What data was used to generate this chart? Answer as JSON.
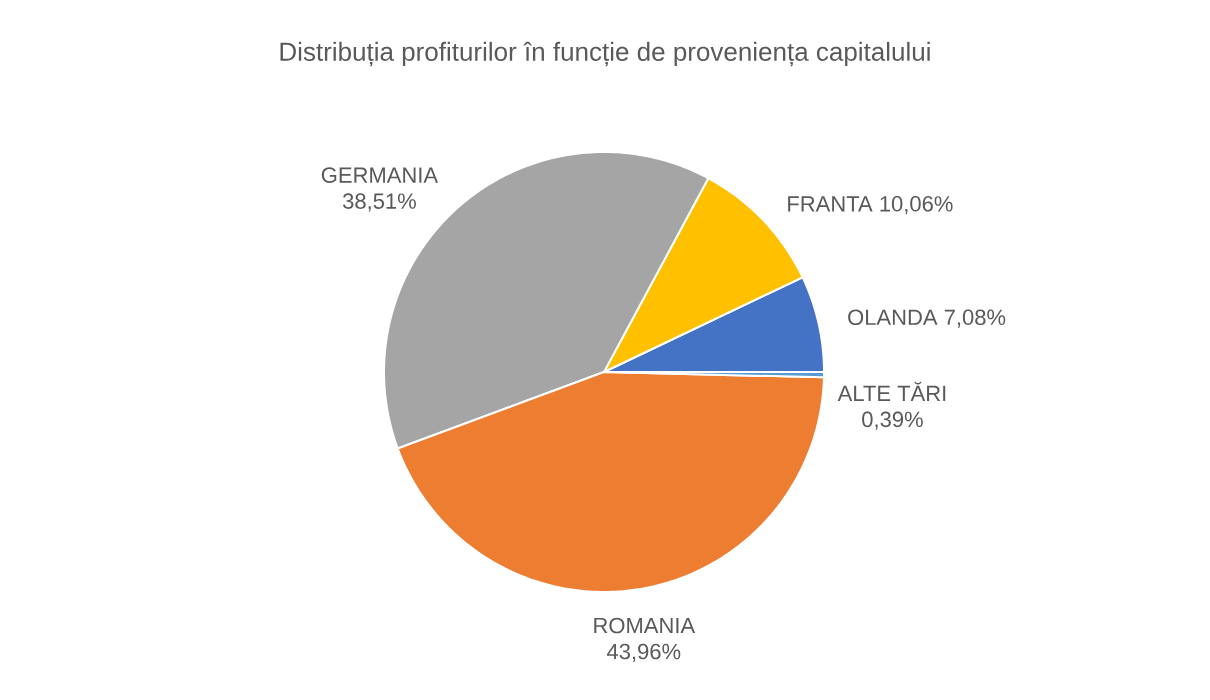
{
  "chart_data": {
    "type": "pie",
    "title": "Distribuția profiturilor în funcție de proveniența  capitalului",
    "categories": [
      "OLANDA",
      "FRANTA",
      "GERMANIA",
      "ROMANIA",
      "ALTE TĂRI"
    ],
    "values": [
      7.08,
      10.06,
      38.51,
      43.96,
      0.39
    ],
    "value_labels": [
      "7,08%",
      "10,06%",
      "38,51%",
      "43,96%",
      "0,39%"
    ],
    "colors": [
      "#4472c4",
      "#ffc000",
      "#a5a5a5",
      "#ed7d31",
      "#5b9bd5"
    ]
  }
}
